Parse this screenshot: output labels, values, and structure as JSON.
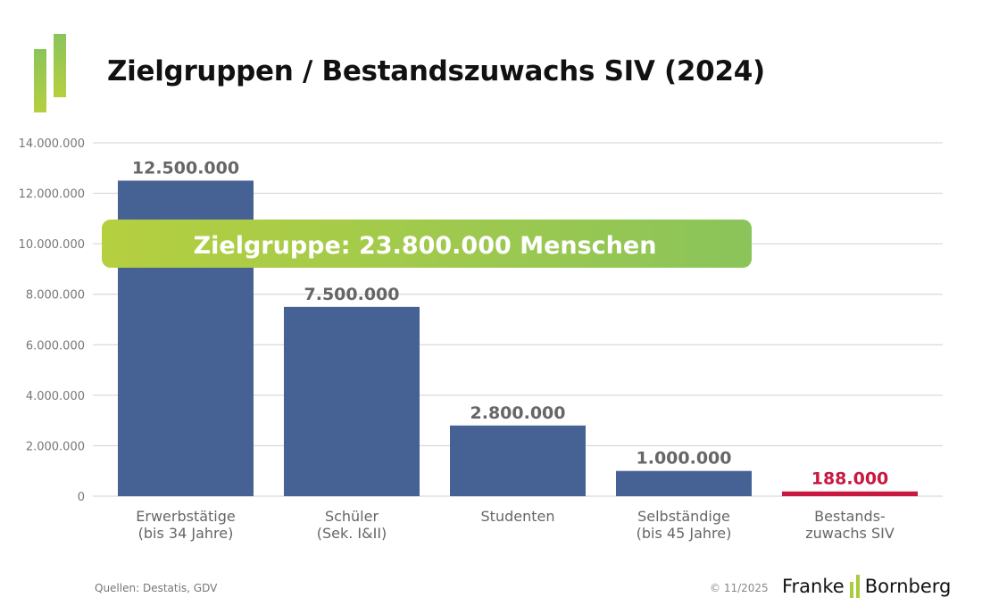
{
  "title": "Zielgruppen / Bestandszuwachs SIV (2024)",
  "footer": {
    "source": "Quellen: Destatis, GDV",
    "copyright": "© 11/2025",
    "brand_left": "Franke",
    "brand_right": "Bornberg"
  },
  "colors": {
    "bar": "#466193",
    "highlight": "#c8183f",
    "banner_start": "#b5cf3f",
    "banner_end": "#8bc45a",
    "grid": "#d0d0d0"
  },
  "chart_data": {
    "type": "bar",
    "title": "Zielgruppen / Bestandszuwachs SIV (2024)",
    "categories": [
      [
        "Erwerbstätige",
        "(bis 34 Jahre)"
      ],
      [
        "Schüler",
        "(Sek. I&II)"
      ],
      [
        "Studenten"
      ],
      [
        "Selbständige",
        "(bis 45 Jahre)"
      ],
      [
        "Bestands-",
        "zuwachs SIV"
      ]
    ],
    "values": [
      12500000,
      7500000,
      2800000,
      1000000,
      188000
    ],
    "data_labels": [
      "12.500.000",
      "7.500.000",
      "2.800.000",
      "1.000.000",
      "188.000"
    ],
    "highlight_index": 4,
    "ylim": [
      0,
      14000000
    ],
    "yticks": [
      0,
      2000000,
      4000000,
      6000000,
      8000000,
      10000000,
      12000000,
      14000000
    ],
    "ytick_labels": [
      "0",
      "2.000.000",
      "4.000.000",
      "6.000.000",
      "8.000.000",
      "10.000.000",
      "12.000.000",
      "14.000.000"
    ],
    "grid": true,
    "annotation": "Zielgruppe: 23.800.000 Menschen"
  }
}
